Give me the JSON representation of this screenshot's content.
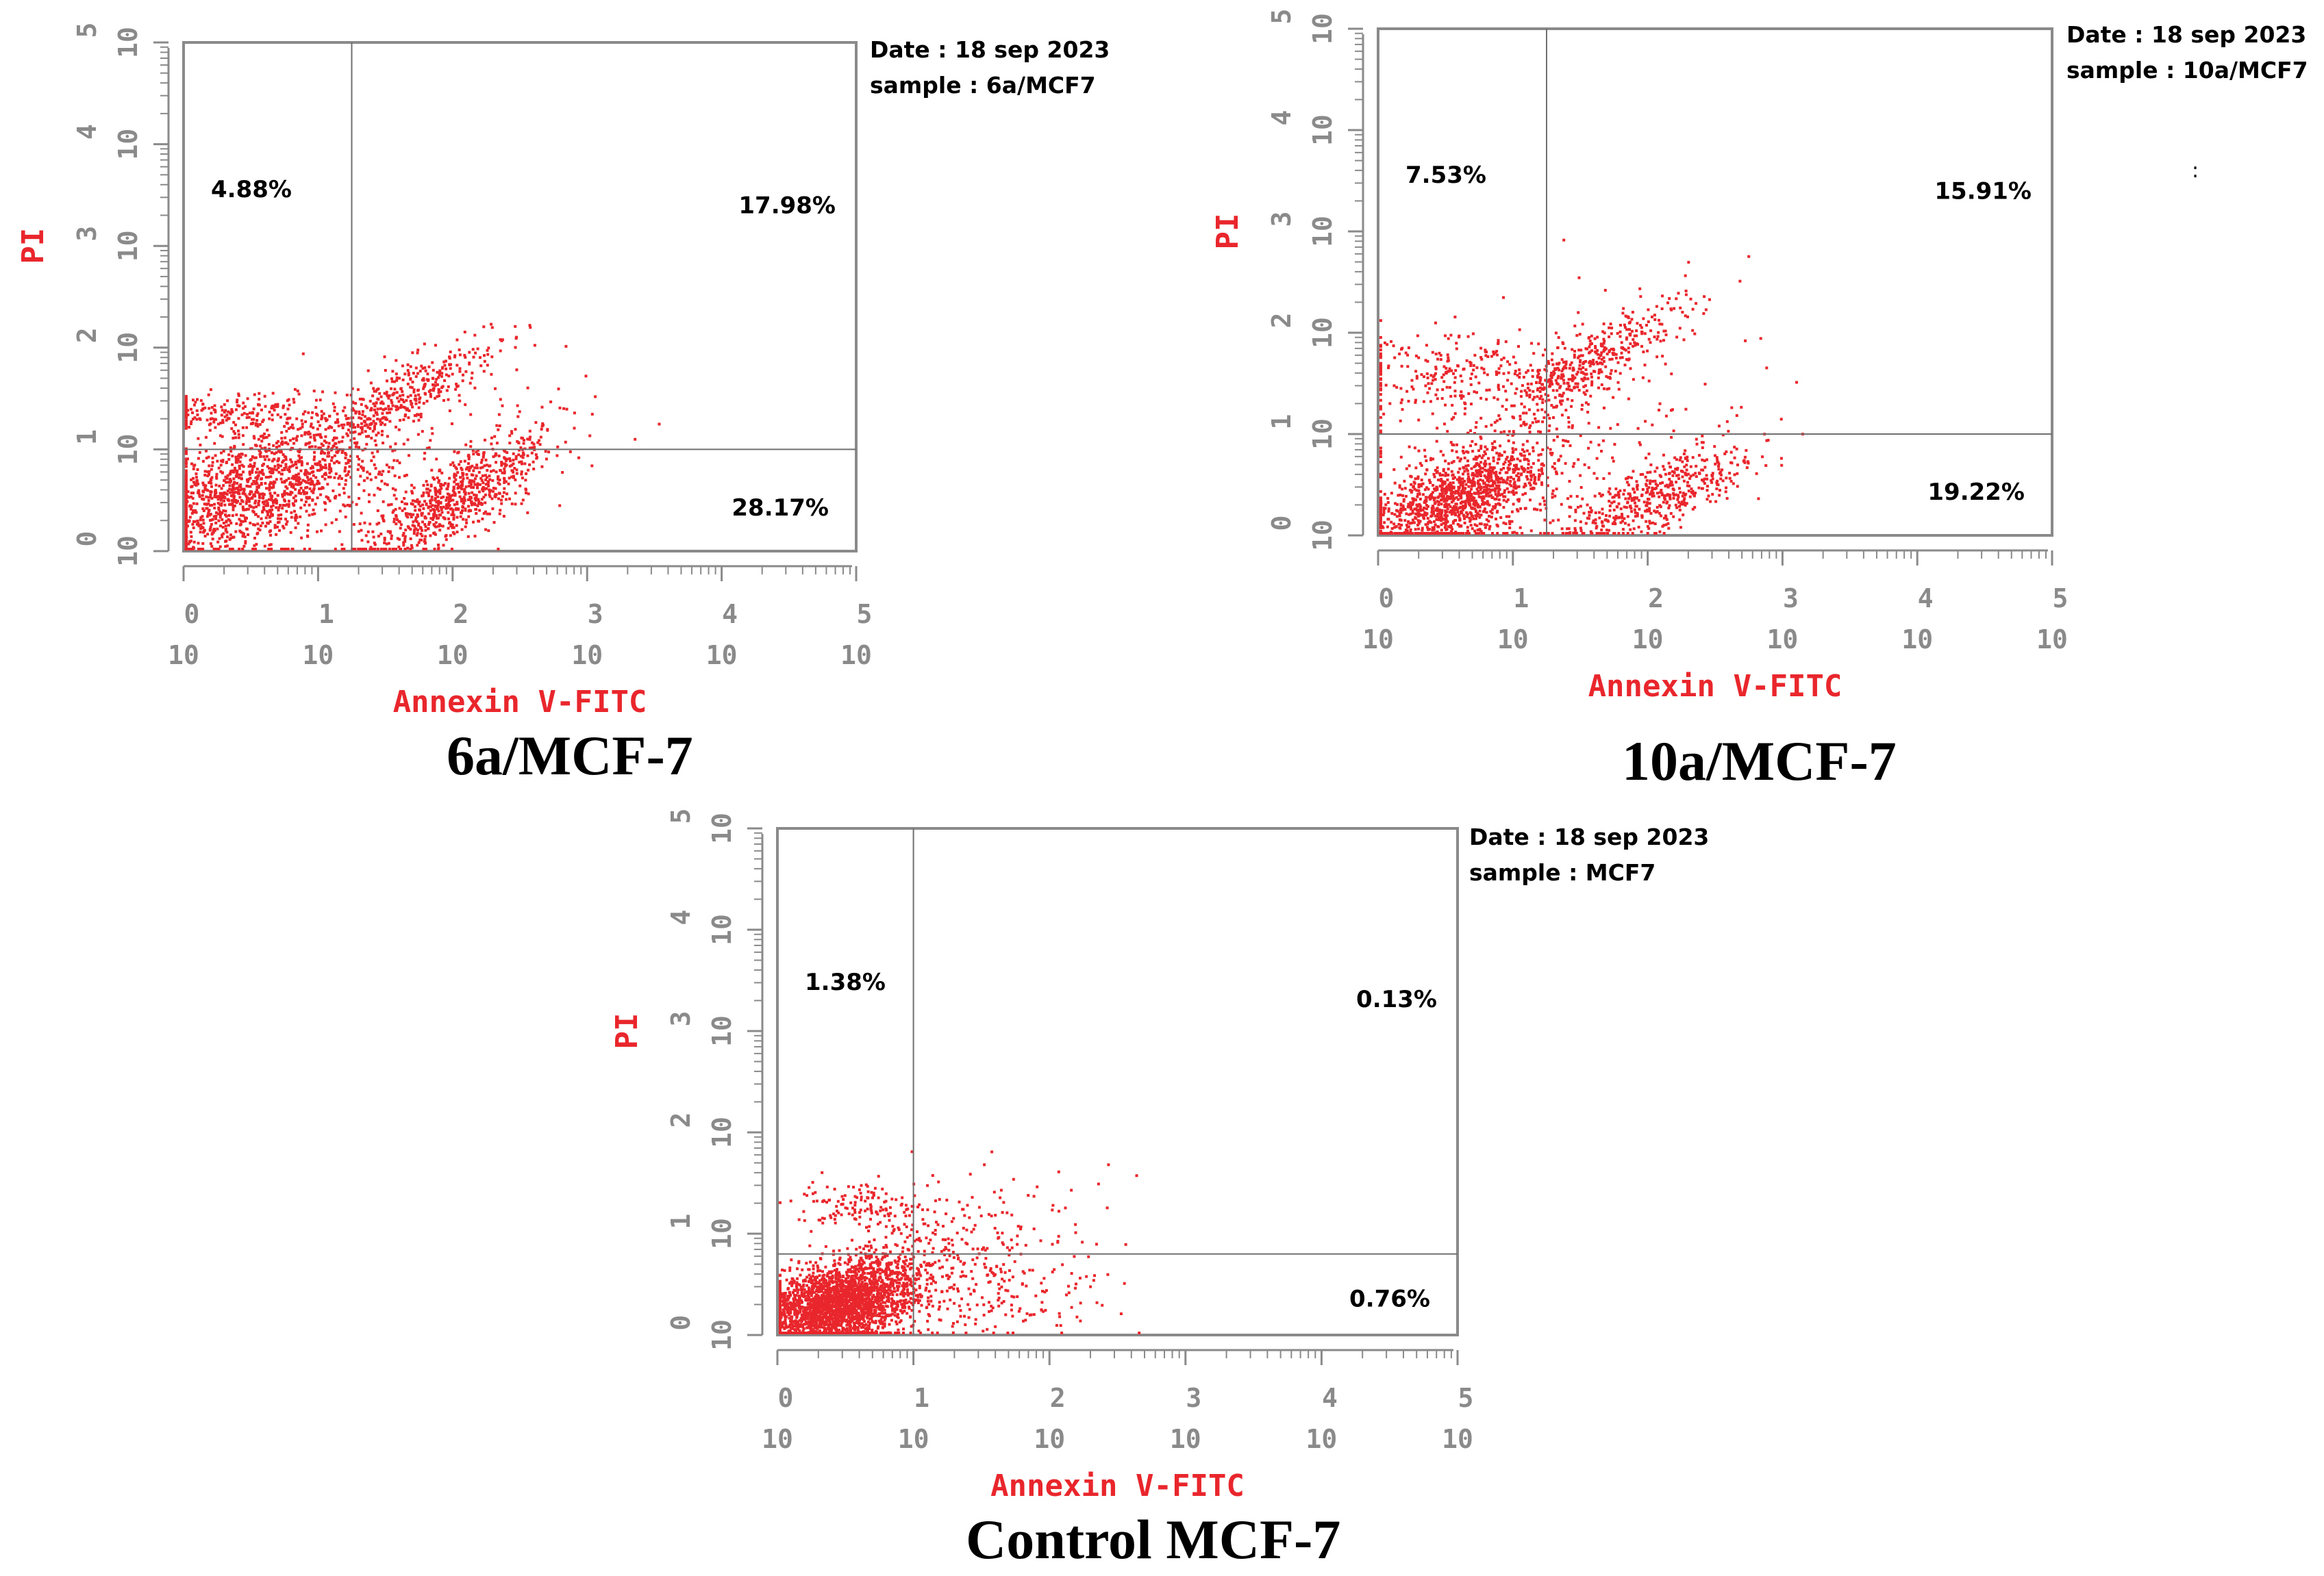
{
  "chart_data": [
    {
      "type": "scatter",
      "id": "p6a",
      "caption": "6a/MCF-7",
      "date_line": "Date : 18 sep 2023",
      "sample_line": "sample :  6a/MCF7",
      "xlabel": "Annexin V-FITC",
      "ylabel": "PI",
      "axis_scale": "log",
      "xlim_exponent": [
        0,
        5
      ],
      "ylim_exponent": [
        0,
        5
      ],
      "tick_base": "10",
      "tick_exponents": [
        "0",
        "1",
        "2",
        "3",
        "4",
        "5"
      ],
      "gate_exponent": {
        "x": 1.25,
        "y": 1.0
      },
      "quadrants": {
        "upper_left": "4.88%",
        "upper_right": "17.98%",
        "lower_right": "28.17%"
      },
      "point_color": "#e8262c",
      "clusters": [
        {
          "cx": 0.5,
          "cy": 0.6,
          "sx": 0.5,
          "sy": 0.35,
          "n": 1400,
          "rho": 0.55
        },
        {
          "cx": 0.35,
          "cy": 1.35,
          "sx": 0.35,
          "sy": 0.1,
          "n": 180,
          "rho": 0
        },
        {
          "cx": 1.6,
          "cy": 1.5,
          "sx": 0.35,
          "sy": 0.28,
          "n": 380,
          "rho": 0.85
        },
        {
          "cx": 2.05,
          "cy": 0.55,
          "sx": 0.33,
          "sy": 0.3,
          "n": 760,
          "rho": 0.75
        },
        {
          "cx": 1.2,
          "cy": 0.9,
          "sx": 0.8,
          "sy": 0.5,
          "n": 200,
          "rho": 0.3
        }
      ]
    },
    {
      "type": "scatter",
      "id": "p10a",
      "caption": "10a/MCF-7",
      "date_line": "Date : 18 sep 2023",
      "sample_line": "sample : 10a/MCF7",
      "xlabel": "Annexin V-FITC",
      "ylabel": "PI",
      "axis_scale": "log",
      "xlim_exponent": [
        0,
        5
      ],
      "ylim_exponent": [
        0,
        5
      ],
      "tick_base": "10",
      "tick_exponents": [
        "0",
        "1",
        "2",
        "3",
        "4",
        "5"
      ],
      "gate_exponent": {
        "x": 1.25,
        "y": 1.0
      },
      "quadrants": {
        "upper_left": "7.53%",
        "upper_right": "15.91%",
        "lower_right": "19.22%"
      },
      "point_color": "#e8262c",
      "clusters": [
        {
          "cx": 0.6,
          "cy": 0.35,
          "sx": 0.35,
          "sy": 0.3,
          "n": 1300,
          "rho": 0.6
        },
        {
          "cx": 0.5,
          "cy": 1.6,
          "sx": 0.4,
          "sy": 0.2,
          "n": 230,
          "rho": 0.2
        },
        {
          "cx": 1.55,
          "cy": 1.7,
          "sx": 0.35,
          "sy": 0.3,
          "n": 430,
          "rho": 0.85
        },
        {
          "cx": 2.05,
          "cy": 0.4,
          "sx": 0.35,
          "sy": 0.25,
          "n": 520,
          "rho": 0.7
        },
        {
          "cx": 1.1,
          "cy": 1.0,
          "sx": 0.8,
          "sy": 0.6,
          "n": 220,
          "rho": 0.3
        }
      ]
    },
    {
      "type": "scatter",
      "id": "pctrl",
      "caption": "Control MCF-7",
      "date_line": "Date : 18 sep 2023",
      "sample_line": "sample : MCF7",
      "xlabel": "Annexin V-FITC",
      "ylabel": "PI",
      "axis_scale": "log",
      "xlim_exponent": [
        0,
        5
      ],
      "ylim_exponent": [
        0,
        5
      ],
      "tick_base": "10",
      "tick_exponents": [
        "0",
        "1",
        "2",
        "3",
        "4",
        "5"
      ],
      "gate_exponent": {
        "x": 1.0,
        "y": 0.8
      },
      "quadrants": {
        "upper_left": "1.38%",
        "upper_right": "0.13%",
        "lower_right": "0.76%"
      },
      "point_color": "#e8262c",
      "clusters": [
        {
          "cx": 0.45,
          "cy": 0.3,
          "sx": 0.3,
          "sy": 0.22,
          "n": 2600,
          "rho": 0.4
        },
        {
          "cx": 0.6,
          "cy": 1.25,
          "sx": 0.25,
          "sy": 0.12,
          "n": 130,
          "rho": 0
        },
        {
          "cx": 1.3,
          "cy": 0.8,
          "sx": 0.45,
          "sy": 0.35,
          "n": 260,
          "rho": 0.2
        },
        {
          "cx": 1.6,
          "cy": 0.4,
          "sx": 0.4,
          "sy": 0.25,
          "n": 140,
          "rho": 0
        }
      ]
    }
  ],
  "stray_mark": ":"
}
